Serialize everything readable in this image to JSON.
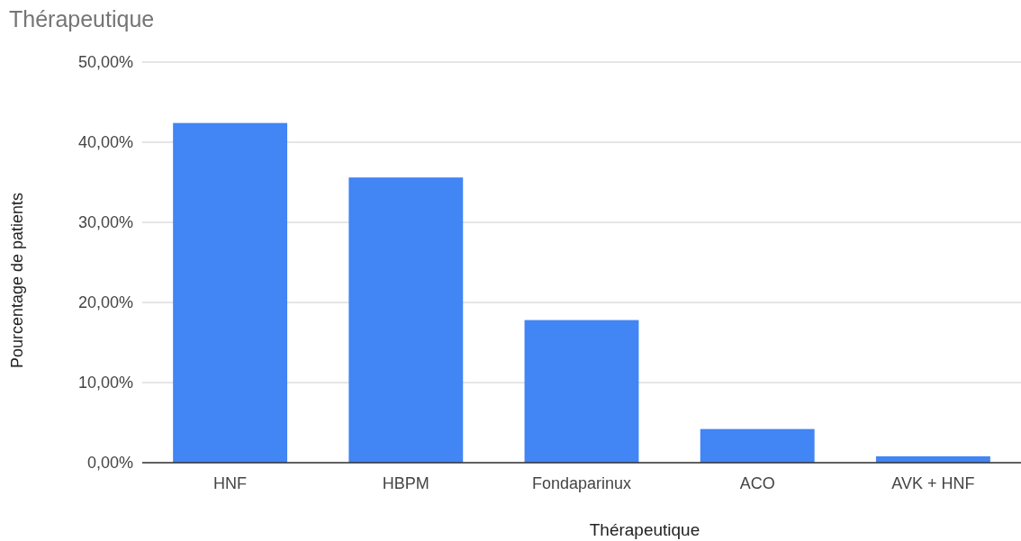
{
  "chart_data": {
    "type": "bar",
    "title": "Thérapeutique",
    "xlabel": "Thérapeutique",
    "ylabel": "Pourcentage de patients",
    "categories": [
      "HNF",
      "HBPM",
      "Fondaparinux",
      "ACO",
      "AVK + HNF"
    ],
    "values": [
      42.4,
      35.6,
      17.8,
      4.2,
      0.8
    ],
    "color": "#4285f4",
    "ylim": [
      0,
      50
    ],
    "yticks": [
      {
        "value": 0,
        "label": "0,00%"
      },
      {
        "value": 10,
        "label": "10,00%"
      },
      {
        "value": 20,
        "label": "20,00%"
      },
      {
        "value": 30,
        "label": "30,00%"
      },
      {
        "value": 40,
        "label": "40,00%"
      },
      {
        "value": 50,
        "label": "50,00%"
      }
    ],
    "grid": "y"
  }
}
